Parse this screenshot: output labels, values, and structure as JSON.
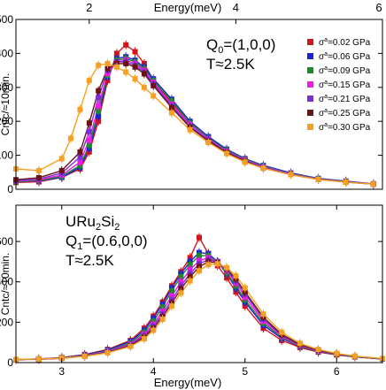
{
  "chart_data": [
    {
      "type": "scatter",
      "panel": "top",
      "annotations": {
        "q_label": "Q",
        "q_sub": "0",
        "q_value": "=(1,0,0)",
        "temperature": "T≈2.5K"
      },
      "top_axis": {
        "label": "Energy(meV)",
        "ticks": [
          "2",
          "4",
          "6"
        ]
      },
      "ylabel": "Cntc/≈10min.",
      "yticks": [
        "0",
        "100",
        "200",
        "300",
        "400",
        "500"
      ],
      "xlim": [
        2.5,
        6.5
      ],
      "ylim": [
        0,
        500
      ],
      "legend_position": "top-right",
      "series": [
        {
          "name": "σ^a=0.02 GPa",
          "legend_main": "σ",
          "legend_sup": "a",
          "legend_rest": "=0.02 GPa",
          "color": "#d4141c",
          "x": [
            2.5,
            2.75,
            3.0,
            3.2,
            3.3,
            3.4,
            3.5,
            3.6,
            3.7,
            3.8,
            3.9,
            4.0,
            4.2,
            4.4,
            4.6,
            4.8,
            5.0,
            5.2,
            5.5,
            5.8,
            6.1,
            6.4
          ],
          "y": [
            20,
            22,
            35,
            60,
            110,
            200,
            320,
            400,
            425,
            405,
            370,
            320,
            255,
            195,
            150,
            115,
            85,
            65,
            45,
            30,
            22,
            15
          ]
        },
        {
          "name": "σ^a=0.06 GPa",
          "legend_main": "σ",
          "legend_sup": "a",
          "legend_rest": "=0.06 GPa",
          "color": "#1c22d6",
          "x": [
            2.5,
            2.75,
            3.0,
            3.2,
            3.3,
            3.4,
            3.5,
            3.6,
            3.7,
            3.8,
            3.9,
            4.0,
            4.2,
            4.4,
            4.6,
            4.8,
            5.0,
            5.2,
            5.5,
            5.8,
            6.1,
            6.4
          ],
          "y": [
            22,
            25,
            35,
            65,
            120,
            215,
            330,
            385,
            390,
            380,
            360,
            325,
            265,
            200,
            155,
            118,
            90,
            70,
            48,
            32,
            24,
            16
          ]
        },
        {
          "name": "σ^a=0.09 GPa",
          "legend_main": "σ",
          "legend_sup": "a",
          "legend_rest": "=0.09 GPa",
          "color": "#1a8a2a",
          "x": [
            2.5,
            2.75,
            3.0,
            3.2,
            3.3,
            3.4,
            3.5,
            3.6,
            3.7,
            3.8,
            3.9,
            4.0,
            4.2,
            4.4,
            4.6,
            4.8,
            5.0,
            5.2,
            5.5,
            5.8,
            6.1,
            6.4
          ],
          "y": [
            22,
            26,
            38,
            70,
            130,
            230,
            335,
            380,
            385,
            375,
            355,
            320,
            260,
            195,
            150,
            115,
            88,
            68,
            46,
            31,
            23,
            15
          ]
        },
        {
          "name": "σ^a=0.15 GPa",
          "legend_main": "σ",
          "legend_sup": "a",
          "legend_rest": "=0.15 GPa",
          "color": "#f01ce6",
          "x": [
            2.5,
            2.75,
            3.0,
            3.2,
            3.3,
            3.4,
            3.5,
            3.6,
            3.7,
            3.8,
            3.9,
            4.0,
            4.2,
            4.4,
            4.6,
            4.8,
            5.0,
            5.2,
            5.5,
            5.8,
            6.1,
            6.4
          ],
          "y": [
            24,
            28,
            42,
            80,
            145,
            245,
            340,
            375,
            380,
            370,
            350,
            315,
            250,
            190,
            148,
            112,
            86,
            66,
            45,
            30,
            22,
            15
          ]
        },
        {
          "name": "σ^a=0.21 GPa",
          "legend_main": "σ",
          "legend_sup": "a",
          "legend_rest": "=0.21 GPa",
          "color": "#7a2fd6",
          "x": [
            2.5,
            2.75,
            3.0,
            3.2,
            3.3,
            3.4,
            3.5,
            3.6,
            3.7,
            3.8,
            3.9,
            4.0,
            4.2,
            4.4,
            4.6,
            4.8,
            5.0,
            5.2,
            5.5,
            5.8,
            6.1,
            6.4
          ],
          "y": [
            25,
            30,
            48,
            95,
            170,
            270,
            350,
            375,
            375,
            365,
            345,
            310,
            245,
            185,
            145,
            110,
            84,
            64,
            44,
            30,
            22,
            15
          ]
        },
        {
          "name": "σ^a=0.25 GPa",
          "legend_main": "σ",
          "legend_sup": "a",
          "legend_rest": "=0.25 GPa",
          "color": "#6b1414",
          "x": [
            2.5,
            2.75,
            3.0,
            3.2,
            3.3,
            3.4,
            3.5,
            3.6,
            3.7,
            3.8,
            3.9,
            4.0,
            4.2,
            4.4,
            4.6,
            4.8,
            5.0,
            5.2,
            5.5,
            5.8,
            6.1,
            6.4
          ],
          "y": [
            28,
            34,
            55,
            110,
            195,
            290,
            355,
            370,
            370,
            360,
            340,
            305,
            240,
            182,
            142,
            108,
            82,
            62,
            43,
            29,
            21,
            15
          ]
        },
        {
          "name": "σ^a=0.30 GPa",
          "legend_main": "σ",
          "legend_sup": "a",
          "legend_rest": "=0.30 GPa",
          "color": "#f5a023",
          "x": [
            2.5,
            2.75,
            3.0,
            3.1,
            3.2,
            3.3,
            3.4,
            3.5,
            3.6,
            3.7,
            3.8,
            3.9,
            4.0,
            4.2,
            4.4,
            4.6,
            4.8,
            5.0,
            5.2,
            5.5,
            5.8,
            6.1,
            6.4
          ],
          "y": [
            60,
            55,
            90,
            150,
            235,
            320,
            365,
            370,
            360,
            345,
            325,
            300,
            275,
            225,
            175,
            138,
            105,
            80,
            62,
            43,
            29,
            21,
            15
          ]
        }
      ]
    },
    {
      "type": "scatter",
      "panel": "bottom",
      "annotations": {
        "compound": [
          "URu",
          "2",
          "Si",
          "2"
        ],
        "q_label": "Q",
        "q_sub": "1",
        "q_value": "=(0.6,0,0)",
        "temperature": "T≈2.5K"
      },
      "xlabel": "Energy(meV)",
      "xticks": [
        "3",
        "4",
        "5",
        "6"
      ],
      "ylabel": "Cntc/≈10min.",
      "yticks": [
        "0",
        "200",
        "400",
        "600"
      ],
      "xlim": [
        2.5,
        6.5
      ],
      "ylim": [
        0,
        780
      ],
      "series": [
        {
          "name": "σ^a=0.02 GPa",
          "color": "#d4141c",
          "x": [
            2.5,
            2.75,
            3.0,
            3.25,
            3.5,
            3.75,
            3.9,
            4.0,
            4.1,
            4.2,
            4.3,
            4.4,
            4.5,
            4.6,
            4.7,
            4.8,
            4.9,
            5.0,
            5.2,
            5.4,
            5.6,
            5.8,
            6.0,
            6.2,
            6.5
          ],
          "y": [
            15,
            18,
            25,
            40,
            65,
            110,
            170,
            230,
            300,
            380,
            450,
            520,
            620,
            540,
            480,
            420,
            350,
            280,
            170,
            110,
            75,
            52,
            38,
            28,
            18
          ]
        },
        {
          "name": "σ^a=0.06 GPa",
          "color": "#1c22d6",
          "x": [
            2.5,
            2.75,
            3.0,
            3.25,
            3.5,
            3.75,
            3.9,
            4.0,
            4.1,
            4.2,
            4.3,
            4.4,
            4.5,
            4.6,
            4.7,
            4.8,
            4.9,
            5.0,
            5.2,
            5.4,
            5.6,
            5.8,
            6.0,
            6.2,
            6.5
          ],
          "y": [
            15,
            18,
            24,
            38,
            62,
            105,
            160,
            220,
            290,
            370,
            440,
            500,
            545,
            540,
            500,
            440,
            370,
            300,
            185,
            120,
            80,
            55,
            40,
            29,
            18
          ]
        },
        {
          "name": "σ^a=0.09 GPa",
          "color": "#1a8a2a",
          "x": [
            2.5,
            2.75,
            3.0,
            3.25,
            3.5,
            3.75,
            3.9,
            4.0,
            4.1,
            4.2,
            4.3,
            4.4,
            4.5,
            4.6,
            4.7,
            4.8,
            4.9,
            5.0,
            5.2,
            5.4,
            5.6,
            5.8,
            6.0,
            6.2,
            6.5
          ],
          "y": [
            15,
            17,
            23,
            36,
            58,
            98,
            150,
            205,
            275,
            355,
            425,
            485,
            530,
            530,
            500,
            445,
            380,
            310,
            195,
            125,
            82,
            56,
            40,
            29,
            18
          ]
        },
        {
          "name": "σ^a=0.15 GPa",
          "color": "#f01ce6",
          "x": [
            2.5,
            2.75,
            3.0,
            3.25,
            3.5,
            3.75,
            3.9,
            4.0,
            4.1,
            4.2,
            4.3,
            4.4,
            4.5,
            4.6,
            4.7,
            4.8,
            4.9,
            5.0,
            5.2,
            5.4,
            5.6,
            5.8,
            6.0,
            6.2,
            6.5
          ],
          "y": [
            15,
            17,
            22,
            34,
            55,
            92,
            140,
            190,
            255,
            330,
            400,
            460,
            505,
            520,
            500,
            455,
            395,
            325,
            205,
            130,
            85,
            58,
            41,
            30,
            19
          ]
        },
        {
          "name": "σ^a=0.21 GPa",
          "color": "#7a2fd6",
          "x": [
            2.5,
            2.75,
            3.0,
            3.25,
            3.5,
            3.75,
            3.9,
            4.0,
            4.1,
            4.2,
            4.3,
            4.4,
            4.5,
            4.6,
            4.7,
            4.8,
            4.9,
            5.0,
            5.2,
            5.4,
            5.6,
            5.8,
            6.0,
            6.2,
            6.5
          ],
          "y": [
            15,
            17,
            22,
            33,
            52,
            88,
            132,
            180,
            240,
            310,
            380,
            440,
            490,
            510,
            500,
            460,
            405,
            340,
            215,
            135,
            88,
            60,
            42,
            30,
            19
          ]
        },
        {
          "name": "σ^a=0.25 GPa",
          "color": "#6b1414",
          "x": [
            2.5,
            2.75,
            3.0,
            3.25,
            3.5,
            3.75,
            3.9,
            4.0,
            4.1,
            4.2,
            4.3,
            4.4,
            4.5,
            4.6,
            4.7,
            4.8,
            4.9,
            5.0,
            5.2,
            5.4,
            5.6,
            5.8,
            6.0,
            6.2,
            6.5
          ],
          "y": [
            15,
            16,
            21,
            32,
            50,
            84,
            125,
            170,
            228,
            295,
            365,
            425,
            475,
            500,
            495,
            465,
            415,
            350,
            225,
            140,
            90,
            62,
            43,
            31,
            19
          ]
        },
        {
          "name": "σ^a=0.30 GPa",
          "color": "#f5a023",
          "x": [
            2.5,
            2.75,
            3.0,
            3.25,
            3.5,
            3.75,
            3.9,
            4.0,
            4.1,
            4.2,
            4.3,
            4.4,
            4.5,
            4.6,
            4.7,
            4.8,
            4.9,
            5.0,
            5.2,
            5.4,
            5.6,
            5.8,
            6.0,
            6.2,
            6.5
          ],
          "y": [
            16,
            17,
            22,
            31,
            48,
            80,
            118,
            160,
            215,
            280,
            345,
            405,
            455,
            485,
            490,
            470,
            430,
            370,
            240,
            150,
            95,
            65,
            45,
            32,
            20
          ]
        }
      ]
    }
  ]
}
